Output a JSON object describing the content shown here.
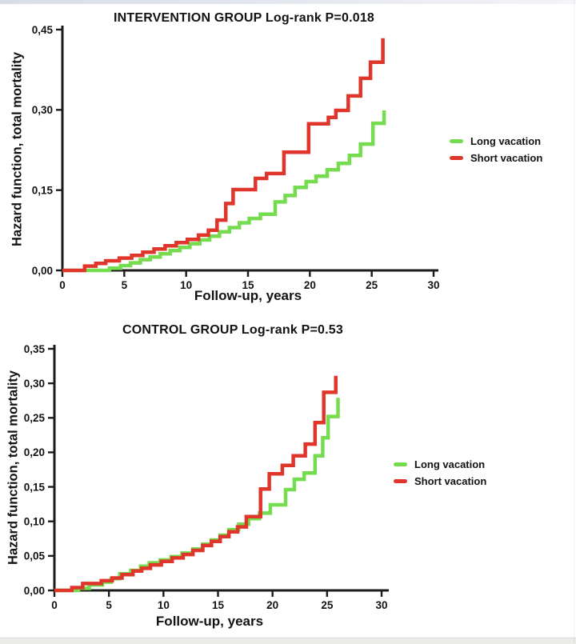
{
  "page": {
    "background": "#ffffff",
    "top_edge_strip_color": "#dfe3ec",
    "bottom_edge_strip_color": "#ebebe9",
    "text_color": "#121212",
    "axis_color": "#1b1b1b",
    "accent_green": "#74dc4e",
    "accent_red": "#e0352b"
  },
  "chart_data": [
    {
      "type": "line",
      "subtype": "step-hazard-function",
      "title": "INTERVENTION GROUP Log-rank P=0.018",
      "xlabel": "Follow-up, years",
      "ylabel": "Hazard function, total mortality",
      "xlim": [
        0,
        30
      ],
      "ylim": [
        0,
        0.45
      ],
      "grid": false,
      "legend_position": "right",
      "xticks": {
        "values": [
          0,
          5,
          10,
          15,
          20,
          25,
          30
        ],
        "labels": [
          "0",
          "5",
          "10",
          "15",
          "20",
          "25",
          "30"
        ]
      },
      "yticks": {
        "values": [
          0,
          0.15,
          0.3,
          0.45
        ],
        "labels": [
          "0,00",
          "0,15",
          "0,30",
          "0,45"
        ]
      },
      "series": [
        {
          "name": "Long vacation",
          "color": "#74dc4e",
          "step_points": [
            [
              3.8,
              0.004
            ],
            [
              4.7,
              0.009
            ],
            [
              5.5,
              0.014
            ],
            [
              6.3,
              0.02
            ],
            [
              7.1,
              0.025
            ],
            [
              7.9,
              0.031
            ],
            [
              8.7,
              0.037
            ],
            [
              9.5,
              0.043
            ],
            [
              10.3,
              0.05
            ],
            [
              11.1,
              0.057
            ],
            [
              11.9,
              0.064
            ],
            [
              12.7,
              0.072
            ],
            [
              13.5,
              0.08
            ],
            [
              14.3,
              0.089
            ],
            [
              15.1,
              0.097
            ],
            [
              16,
              0.105
            ],
            [
              17.2,
              0.128
            ],
            [
              18,
              0.14
            ],
            [
              18.8,
              0.155
            ],
            [
              19.7,
              0.166
            ],
            [
              20.5,
              0.176
            ],
            [
              21.4,
              0.188
            ],
            [
              22.3,
              0.2
            ],
            [
              23.2,
              0.215
            ],
            [
              24.1,
              0.236
            ],
            [
              25.1,
              0.275
            ],
            [
              26,
              0.299
            ]
          ]
        },
        {
          "name": "Short vacation",
          "color": "#e0352b",
          "step_points": [
            [
              1.8,
              0.008
            ],
            [
              2.7,
              0.013
            ],
            [
              3.5,
              0.018
            ],
            [
              4.6,
              0.023
            ],
            [
              5.6,
              0.028
            ],
            [
              6.5,
              0.034
            ],
            [
              7.4,
              0.04
            ],
            [
              8.3,
              0.046
            ],
            [
              9.2,
              0.052
            ],
            [
              10.1,
              0.058
            ],
            [
              11,
              0.066
            ],
            [
              11.8,
              0.075
            ],
            [
              12.5,
              0.094
            ],
            [
              13.2,
              0.125
            ],
            [
              13.8,
              0.151
            ],
            [
              15.6,
              0.172
            ],
            [
              16.5,
              0.181
            ],
            [
              17.9,
              0.221
            ],
            [
              19.9,
              0.274
            ],
            [
              21.5,
              0.286
            ],
            [
              22.1,
              0.299
            ],
            [
              23.1,
              0.326
            ],
            [
              24.1,
              0.359
            ],
            [
              24.9,
              0.389
            ],
            [
              25.9,
              0.434
            ]
          ]
        }
      ]
    },
    {
      "type": "line",
      "subtype": "step-hazard-function",
      "title": "CONTROL GROUP Log-rank P=0.53",
      "xlabel": "Follow-up, years",
      "ylabel": "Hazard function, total mortality",
      "xlim": [
        0,
        30
      ],
      "ylim": [
        0,
        0.35
      ],
      "grid": false,
      "legend_position": "right",
      "xticks": {
        "values": [
          0,
          5,
          10,
          15,
          20,
          25,
          30
        ],
        "labels": [
          "0",
          "5",
          "10",
          "15",
          "20",
          "25",
          "30"
        ]
      },
      "yticks": {
        "values": [
          0,
          0.05,
          0.1,
          0.15,
          0.2,
          0.25,
          0.3,
          0.35
        ],
        "labels": [
          "0,00",
          "0,05",
          "0,10",
          "0,15",
          "0,20",
          "0,25",
          "0,30",
          "0,35"
        ]
      },
      "series": [
        {
          "name": "Long vacation",
          "color": "#74dc4e",
          "step_points": [
            [
              2.2,
              0.003
            ],
            [
              3.2,
              0.008
            ],
            [
              4.4,
              0.012
            ],
            [
              5.2,
              0.017
            ],
            [
              6,
              0.024
            ],
            [
              7,
              0.029
            ],
            [
              7.9,
              0.035
            ],
            [
              8.7,
              0.04
            ],
            [
              9.7,
              0.044
            ],
            [
              10.7,
              0.049
            ],
            [
              11.7,
              0.054
            ],
            [
              12.7,
              0.06
            ],
            [
              13.6,
              0.067
            ],
            [
              14.4,
              0.073
            ],
            [
              15.2,
              0.08
            ],
            [
              16,
              0.088
            ],
            [
              16.9,
              0.096
            ],
            [
              17.8,
              0.104
            ],
            [
              18.8,
              0.112
            ],
            [
              19.8,
              0.124
            ],
            [
              21.2,
              0.146
            ],
            [
              22,
              0.161
            ],
            [
              22.9,
              0.17
            ],
            [
              23.9,
              0.195
            ],
            [
              24.6,
              0.221
            ],
            [
              25.1,
              0.252
            ],
            [
              26,
              0.279
            ]
          ]
        },
        {
          "name": "Short vacation",
          "color": "#e0352b",
          "step_points": [
            [
              1.6,
              0.004
            ],
            [
              2.6,
              0.01
            ],
            [
              4.3,
              0.014
            ],
            [
              5.3,
              0.018
            ],
            [
              6.2,
              0.023
            ],
            [
              7.2,
              0.028
            ],
            [
              8,
              0.032
            ],
            [
              8.8,
              0.037
            ],
            [
              9.8,
              0.042
            ],
            [
              10.8,
              0.047
            ],
            [
              11.8,
              0.052
            ],
            [
              12.7,
              0.058
            ],
            [
              13.6,
              0.065
            ],
            [
              14.4,
              0.071
            ],
            [
              15.2,
              0.078
            ],
            [
              16,
              0.085
            ],
            [
              16.8,
              0.092
            ],
            [
              17.6,
              0.107
            ],
            [
              18.9,
              0.147
            ],
            [
              19.7,
              0.169
            ],
            [
              20.9,
              0.181
            ],
            [
              21.9,
              0.195
            ],
            [
              23,
              0.212
            ],
            [
              23.9,
              0.243
            ],
            [
              24.7,
              0.287
            ],
            [
              25.8,
              0.311
            ]
          ]
        }
      ]
    }
  ]
}
